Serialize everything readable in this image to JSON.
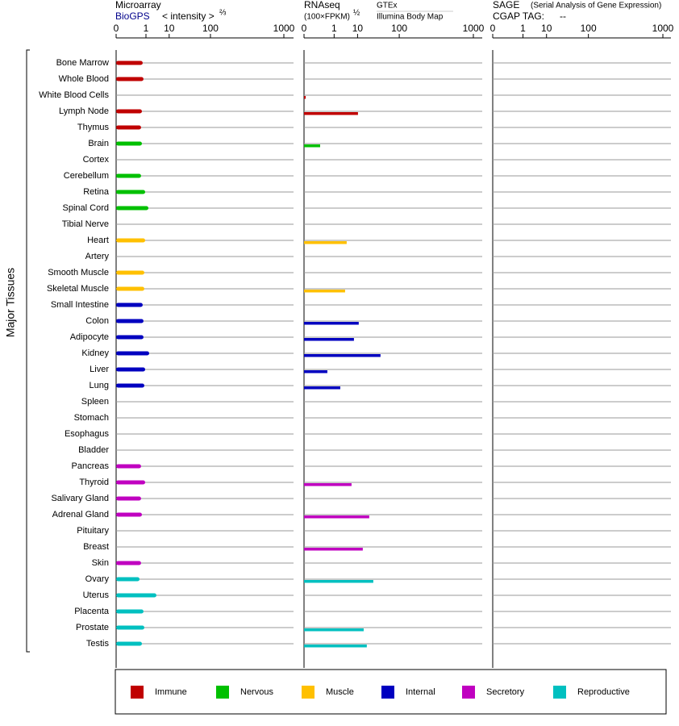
{
  "group_label": "Major Tissues",
  "groups": [
    {
      "name": "Immune",
      "color": "#c00000",
      "tissues": [
        "Bone Marrow",
        "Whole Blood",
        "White Blood Cells",
        "Lymph Node",
        "Thymus"
      ]
    },
    {
      "name": "Nervous",
      "color": "#00c000",
      "tissues": [
        "Brain",
        "Cortex",
        "Cerebellum",
        "Retina",
        "Spinal Cord",
        "Tibial Nerve"
      ]
    },
    {
      "name": "Muscle",
      "color": "#ffc000",
      "tissues": [
        "Heart",
        "Artery",
        "Smooth Muscle",
        "Skeletal Muscle"
      ]
    },
    {
      "name": "Internal",
      "color": "#0000c0",
      "tissues": [
        "Small Intestine",
        "Colon",
        "Adipocyte",
        "Kidney",
        "Liver",
        "Lung",
        "Spleen",
        "Stomach",
        "Esophagus",
        "Bladder"
      ]
    },
    {
      "name": "Secretory",
      "color": "#c000c0",
      "tissues": [
        "Pancreas",
        "Thyroid",
        "Salivary Gland",
        "Adrenal Gland",
        "Pituitary",
        "Breast",
        "Skin"
      ]
    },
    {
      "name": "Reproductive",
      "color": "#00c0c0",
      "tissues": [
        "Ovary",
        "Uterus",
        "Placenta",
        "Prostate",
        "Testis"
      ]
    }
  ],
  "chart_data": [
    {
      "type": "bar",
      "title": "Microarray",
      "source": "BioGPS",
      "unit": "< intensity >",
      "unit_exponent": "⅔",
      "xlim": [
        0,
        1000
      ],
      "xticks": [
        0,
        1,
        10,
        100,
        1000
      ],
      "values": [
        [
          0.63,
          0.71,
          null,
          0.56,
          0.49
        ],
        [
          0.56,
          null,
          0.49,
          0.9,
          1.37,
          null
        ],
        [
          0.9,
          null,
          0.8,
          0.8
        ],
        [
          0.63,
          0.71,
          0.71,
          1.51,
          0.9,
          0.8,
          null,
          null,
          null,
          null
        ],
        [
          0.49,
          0.9,
          0.49,
          0.56,
          null,
          null,
          0.49
        ],
        [
          0.38,
          3.33,
          0.71,
          0.8,
          0.56
        ]
      ]
    },
    {
      "type": "bar",
      "title": "RNAseq",
      "unit": "(100×FPKM)",
      "unit_exponent": "½",
      "sources": [
        "GTEx",
        "Illumina Body Map"
      ],
      "xlim": [
        0,
        1000
      ],
      "xticks": [
        0,
        1,
        10,
        100,
        1000
      ],
      "values": [
        [
          null,
          null,
          1e-05,
          10.3,
          null
        ],
        [
          0.082,
          null,
          null,
          null,
          null,
          null
        ],
        [
          4.03,
          null,
          null,
          3.46
        ],
        [
          null,
          10.9,
          7.55,
          41.6,
          0.36,
          2.1,
          null,
          null,
          null,
          null
        ],
        [
          null,
          6.2,
          null,
          22,
          null,
          14.5,
          null
        ],
        [
          28,
          null,
          null,
          15.4,
          18.9
        ]
      ]
    },
    {
      "type": "bar",
      "title": "SAGE",
      "subtitle": "(Serial Analysis of Gene Expression)",
      "tag_label": "CGAP TAG:",
      "tag": "--",
      "xlim": [
        0,
        1000
      ],
      "xticks": [
        0,
        1,
        10,
        100,
        1000
      ],
      "values": [
        [
          null,
          null,
          null,
          null,
          null
        ],
        [
          null,
          null,
          null,
          null,
          null,
          null
        ],
        [
          null,
          null,
          null,
          null
        ],
        [
          null,
          null,
          null,
          null,
          null,
          null,
          null,
          null,
          null,
          null
        ],
        [
          null,
          null,
          null,
          null,
          null,
          null,
          null
        ],
        [
          null,
          null,
          null,
          null,
          null
        ]
      ]
    }
  ]
}
